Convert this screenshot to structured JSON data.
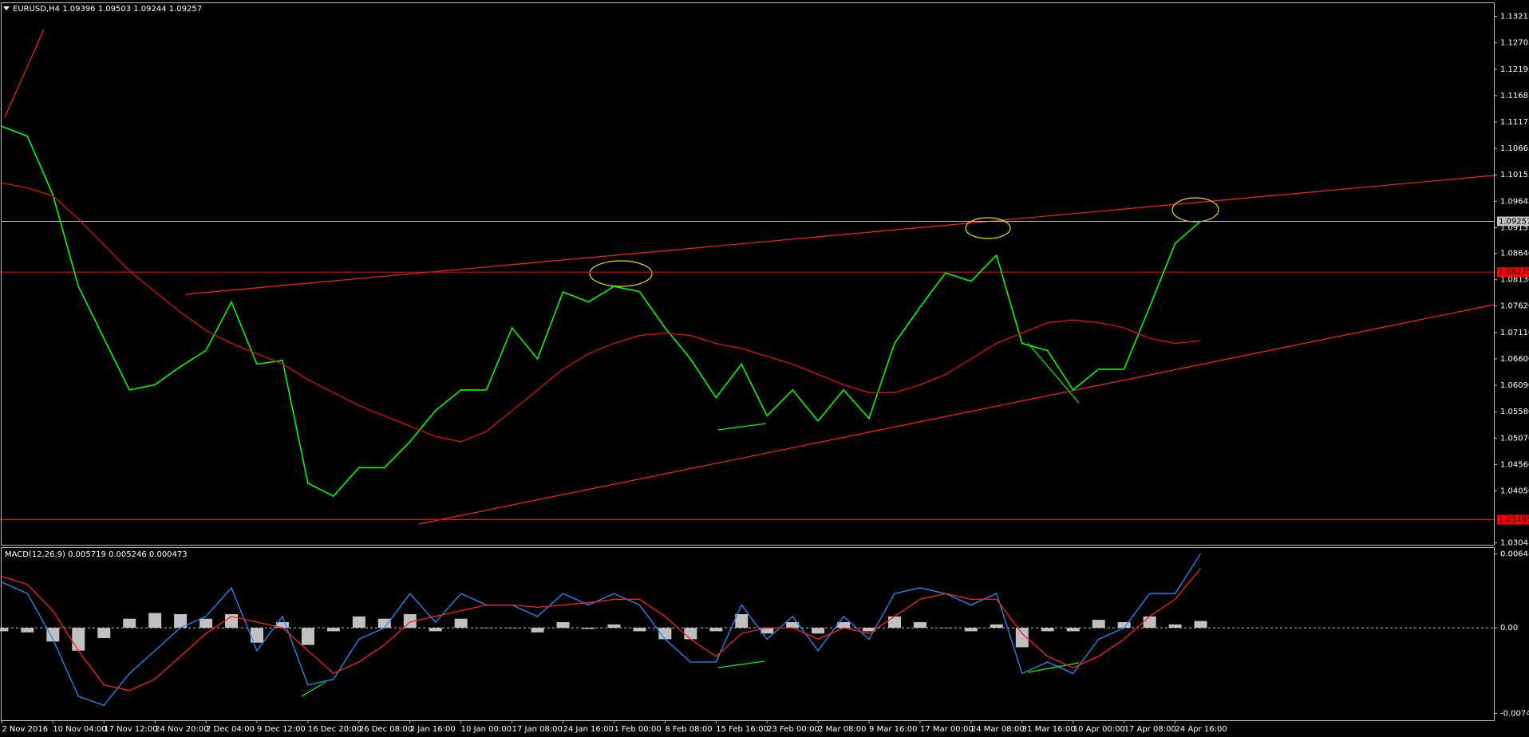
{
  "chart_data": [
    {
      "type": "price",
      "title": "EURUSD,H4 1.09396 1.09503 1.09244 1.09257",
      "categories": [
        "2 Nov 2016",
        null,
        "10 Nov 04:00",
        null,
        "17 Nov 12:00",
        null,
        "24 Nov 20:00",
        null,
        "2 Dec 04:00",
        null,
        "9 Dec 12:00",
        null,
        "16 Dec 20:00",
        null,
        "26 Dec 08:00",
        null,
        "2 Jan 16:00",
        null,
        "10 Jan 00:00",
        null,
        "17 Jan 08:00",
        null,
        "24 Jan 16:00",
        null,
        "1 Feb 00:00",
        null,
        "8 Feb 08:00",
        null,
        "15 Feb 16:00",
        null,
        "23 Feb 00:00",
        null,
        "2 Mar 08:00",
        null,
        "9 Mar 16:00",
        null,
        "17 Mar 00:00",
        null,
        "24 Mar 08:00",
        null,
        "31 Mar 16:00",
        null,
        "10 Apr 00:00",
        null,
        "17 Apr 08:00",
        null,
        "24 Apr 16:00",
        null
      ],
      "series": [
        {
          "color": "#00ff00",
          "values": [
            1.1109,
            1.109,
            1.0977,
            1.08,
            1.07,
            1.06,
            1.061,
            1.0645,
            1.0676,
            1.077,
            1.065,
            1.0657,
            1.042,
            1.0395,
            1.045,
            1.045,
            1.05,
            1.056,
            1.06,
            1.06,
            1.072,
            1.066,
            1.0789,
            1.077,
            1.08,
            1.079,
            1.072,
            1.066,
            1.0585,
            1.065,
            1.055,
            1.06,
            1.054,
            1.06,
            1.0545,
            1.069,
            1.076,
            1.0826,
            1.081,
            1.086,
            1.069,
            1.0676,
            1.06,
            1.064,
            1.064,
            1.076,
            1.0883,
            1.0926
          ]
        },
        {
          "color": "#e01010",
          "values": [
            1.1,
            1.099,
            1.0975,
            1.093,
            1.088,
            1.083,
            1.079,
            1.075,
            1.0715,
            1.069,
            1.067,
            1.065,
            1.062,
            1.0595,
            1.057,
            1.055,
            1.053,
            1.051,
            1.05,
            1.052,
            1.056,
            1.06,
            1.064,
            1.067,
            1.069,
            1.0705,
            1.071,
            1.0705,
            1.069,
            1.068,
            1.0665,
            1.065,
            1.063,
            1.061,
            1.0595,
            1.0595,
            1.061,
            1.063,
            1.066,
            1.069,
            1.071,
            1.073,
            1.0735,
            1.073,
            1.072,
            1.07,
            1.069,
            1.0695
          ]
        }
      ],
      "price_tags": [
        {
          "value": 1.09257,
          "color": "#c0c0c0"
        },
        {
          "value": 1.08275,
          "color": "#ff0000"
        },
        {
          "value": 1.03495,
          "color": "#ff0000"
        }
      ],
      "ylim": [
        1.0301,
        1.1347
      ],
      "yticks": [
        1.13215,
        1.12705,
        1.12195,
        1.11685,
        1.11175,
        1.10665,
        1.10155,
        1.09645,
        1.09135,
        {
          "value": 1.0864,
          "label": "1.08640"
        },
        {
          "value": 1.0813,
          "label": "1.08130"
        },
        {
          "value": 1.0762,
          "label": "1.07620"
        },
        {
          "value": 1.0711,
          "label": "1.07110"
        },
        {
          "value": 1.066,
          "label": "1.06600"
        },
        {
          "value": 1.0609,
          "label": "1.06090"
        },
        {
          "value": 1.0558,
          "label": "1.05580"
        },
        {
          "value": 1.0507,
          "label": "1.05070"
        },
        {
          "value": 1.0456,
          "label": "1.04560"
        },
        {
          "value": 1.0405,
          "label": "1.04050"
        },
        1.03045
      ]
    },
    {
      "type": "macd",
      "title": "MACD(12,26,9) 0.005719 0.005246 0.000473",
      "histogram": {
        "color": "#c0c0c0",
        "values": [
          -0.0003,
          -0.0004,
          -0.0012,
          -0.002,
          -0.0009,
          0.0008,
          0.0013,
          0.0012,
          0.0008,
          0.0012,
          -0.0013,
          0.0005,
          -0.0015,
          -0.0003,
          0.001,
          0.0008,
          0.0012,
          -0.0003,
          0.0008,
          0,
          0,
          -0.0004,
          0.0005,
          -0.0001,
          0.0003,
          -0.0003,
          -0.001,
          -0.001,
          -0.0003,
          0.0012,
          -0.0005,
          0.0005,
          -0.0005,
          0.0005,
          -0.0003,
          0.001,
          0.0005,
          0,
          -0.0003,
          0.0003,
          -0.0017,
          -0.0003,
          -0.0003,
          0.0007,
          0.0005,
          0.001,
          0.0003,
          0.0006
        ]
      },
      "series": [
        {
          "color": "#1e90ff",
          "values": [
            0.004,
            0.003,
            -0.001,
            -0.006,
            -0.0068,
            -0.004,
            -0.002,
            0,
            0.001,
            0.0035,
            -0.002,
            0.001,
            -0.005,
            -0.0045,
            -0.001,
            0,
            0.003,
            0.0005,
            0.003,
            0.002,
            0.002,
            0.001,
            0.003,
            0.002,
            0.003,
            0.002,
            -0.001,
            -0.003,
            -0.003,
            0.002,
            -0.001,
            0.001,
            -0.002,
            0.001,
            -0.001,
            0.003,
            0.0035,
            0.003,
            0.002,
            0.003,
            -0.004,
            -0.003,
            -0.004,
            -0.001,
            0,
            0.003,
            0.003,
            0.0065
          ]
        },
        {
          "color": "#ff2020",
          "values": [
            0.0045,
            0.0038,
            0.0015,
            -0.002,
            -0.005,
            -0.0055,
            -0.0045,
            -0.0025,
            -0.0005,
            0.001,
            0.0005,
            0,
            -0.002,
            -0.004,
            -0.003,
            -0.0015,
            0.0005,
            0.001,
            0.0015,
            0.002,
            0.002,
            0.0018,
            0.002,
            0.0022,
            0.0025,
            0.0025,
            0.001,
            -0.001,
            -0.0025,
            -0.0005,
            0,
            0,
            -0.001,
            0,
            -0.0005,
            0.001,
            0.0025,
            0.003,
            0.0025,
            0.0025,
            -0.0005,
            -0.0025,
            -0.0035,
            -0.0025,
            -0.001,
            0.001,
            0.0025,
            0.0052
          ]
        }
      ],
      "ylim": [
        -0.0081,
        0.007
      ],
      "yticks": [
        0.006483,
        {
          "value": 0,
          "label": "0.00"
        },
        -0.007495
      ]
    }
  ]
}
